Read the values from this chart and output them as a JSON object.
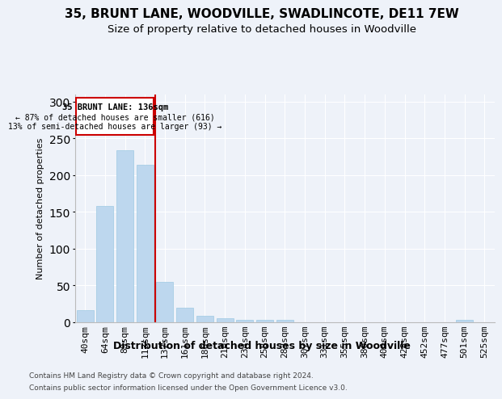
{
  "title1": "35, BRUNT LANE, WOODVILLE, SWADLINCOTE, DE11 7EW",
  "title2": "Size of property relative to detached houses in Woodville",
  "xlabel": "Distribution of detached houses by size in Woodville",
  "ylabel": "Number of detached properties",
  "categories": [
    "40sqm",
    "64sqm",
    "89sqm",
    "113sqm",
    "137sqm",
    "161sqm",
    "186sqm",
    "210sqm",
    "234sqm",
    "258sqm",
    "283sqm",
    "307sqm",
    "331sqm",
    "355sqm",
    "380sqm",
    "404sqm",
    "428sqm",
    "452sqm",
    "477sqm",
    "501sqm",
    "525sqm"
  ],
  "values": [
    17,
    158,
    234,
    214,
    55,
    20,
    9,
    5,
    3,
    3,
    3,
    0,
    0,
    0,
    0,
    0,
    0,
    0,
    0,
    3,
    0
  ],
  "bar_color": "#bdd7ee",
  "bar_edge_color": "#9ec9e2",
  "vline_color": "#cc0000",
  "vline_x": 3.5,
  "annotation_title": "35 BRUNT LANE: 136sqm",
  "annotation_line1": "← 87% of detached houses are smaller (616)",
  "annotation_line2": "13% of semi-detached houses are larger (93) →",
  "annotation_box_color": "#cc0000",
  "ylim": [
    0,
    310
  ],
  "yticks": [
    0,
    50,
    100,
    150,
    200,
    250,
    300
  ],
  "footer1": "Contains HM Land Registry data © Crown copyright and database right 2024.",
  "footer2": "Contains public sector information licensed under the Open Government Licence v3.0.",
  "bg_color": "#eef2f9",
  "plot_bg_color": "#eef2f9",
  "title_fontsize": 11,
  "subtitle_fontsize": 9.5,
  "ylabel_fontsize": 8,
  "tick_fontsize": 8,
  "xlabel_fontsize": 9,
  "footer_fontsize": 6.5
}
